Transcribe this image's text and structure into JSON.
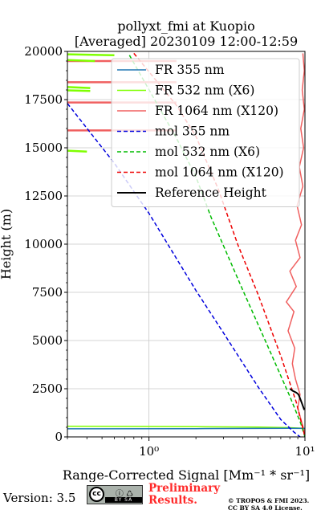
{
  "chart_data": {
    "type": "line",
    "title": "pollyxt_fmi at Kuopio",
    "subtitle": "[Averaged] 20230109 12:00-12:59",
    "xlabel": "Range-Corrected Signal [Mm⁻¹ * sr⁻¹]",
    "ylabel": "Height (m)",
    "xscale": "log",
    "xlim": [
      0.3,
      10
    ],
    "ylim": [
      0,
      20000
    ],
    "xticks": [
      1,
      10
    ],
    "xtick_labels": [
      "10⁰",
      "10¹"
    ],
    "yticks": [
      0,
      2500,
      5000,
      7500,
      10000,
      12500,
      15000,
      17500,
      20000
    ],
    "ytick_labels": [
      "0",
      "2500",
      "5000",
      "7500",
      "10000",
      "12500",
      "15000",
      "17500",
      "20000"
    ],
    "grid": true,
    "legend_position": "top-right",
    "series": [
      {
        "name": "FR 355 nm",
        "color": "#1f77b4",
        "style": "solid",
        "points": [
          [
            0.3,
            420
          ],
          [
            2,
            430
          ],
          [
            5,
            440
          ],
          [
            8,
            450
          ],
          [
            10,
            440
          ]
        ]
      },
      {
        "name": "FR 532 nm (X6)",
        "color": "#7fff00",
        "style": "solid",
        "points": [
          [
            0.3,
            550
          ],
          [
            2,
            530
          ],
          [
            5,
            510
          ],
          [
            8,
            480
          ],
          [
            10,
            440
          ]
        ],
        "extra_segments": [
          [
            [
              0.3,
              19850
            ],
            [
              0.6,
              19800
            ]
          ],
          [
            [
              0.3,
              19550
            ],
            [
              0.45,
              19500
            ]
          ],
          [
            [
              0.3,
              18150
            ],
            [
              0.42,
              18100
            ]
          ],
          [
            [
              0.3,
              17980
            ],
            [
              0.42,
              17950
            ]
          ],
          [
            [
              0.3,
              14850
            ],
            [
              0.4,
              14800
            ]
          ]
        ]
      },
      {
        "name": "FR 1064 nm (X120)",
        "color": "#f06060",
        "style": "solid",
        "points": [
          [
            10,
            200
          ],
          [
            9.5,
            800
          ],
          [
            9,
            1500
          ],
          [
            9.3,
            2200
          ],
          [
            8.7,
            3000
          ],
          [
            8.3,
            3800
          ],
          [
            8.6,
            4600
          ],
          [
            7.8,
            5500
          ],
          [
            8.5,
            6500
          ],
          [
            7.6,
            7000
          ],
          [
            8.8,
            7800
          ],
          [
            8,
            8600
          ],
          [
            9.3,
            9300
          ],
          [
            8.7,
            10200
          ],
          [
            9.5,
            11000
          ],
          [
            8.9,
            12000
          ],
          [
            9.7,
            13000
          ],
          [
            9.2,
            14000
          ],
          [
            9.8,
            15000
          ],
          [
            9.4,
            16000
          ],
          [
            9.9,
            17000
          ],
          [
            9.6,
            18000
          ],
          [
            9.9,
            19000
          ],
          [
            9.7,
            19900
          ]
        ],
        "extra_segments": [
          [
            [
              0.3,
              15900
            ],
            [
              1.5,
              15900
            ]
          ],
          [
            [
              0.3,
              17350
            ],
            [
              1.5,
              17350
            ]
          ],
          [
            [
              0.3,
              18400
            ],
            [
              1.5,
              18400
            ]
          ],
          [
            [
              0.3,
              19500
            ],
            [
              1.5,
              19500
            ]
          ]
        ]
      },
      {
        "name": "mol 355 nm",
        "color": "#0000dd",
        "style": "dashed",
        "points": [
          [
            0.3,
            17300
          ],
          [
            0.6,
            14200
          ],
          [
            1,
            11600
          ],
          [
            2,
            7600
          ],
          [
            3,
            5400
          ],
          [
            5,
            2600
          ],
          [
            7,
            900
          ],
          [
            8.5,
            250
          ],
          [
            9.3,
            0
          ]
        ]
      },
      {
        "name": "mol 532 nm (X6)",
        "color": "#00bb00",
        "style": "dashed",
        "points": [
          [
            0.75,
            19800
          ],
          [
            1.5,
            15500
          ],
          [
            2,
            13500
          ],
          [
            2.5,
            11400
          ],
          [
            4,
            7600
          ],
          [
            6,
            4400
          ],
          [
            8,
            2100
          ],
          [
            9.4,
            700
          ],
          [
            10,
            0
          ]
        ]
      },
      {
        "name": "mol 1064 nm (X120)",
        "color": "#ee0000",
        "style": "dashed",
        "points": [
          [
            0.8,
            19900
          ],
          [
            1.5,
            17200
          ],
          [
            2,
            15600
          ],
          [
            2.8,
            12800
          ],
          [
            3.7,
            10000
          ],
          [
            5,
            7400
          ],
          [
            7,
            4200
          ],
          [
            8.8,
            1800
          ],
          [
            10,
            0
          ]
        ]
      },
      {
        "name": "Reference Height",
        "color": "#000000",
        "style": "solid",
        "points": [
          [
            8,
            2500
          ],
          [
            8.3,
            2400
          ],
          [
            8.8,
            2300
          ],
          [
            9.1,
            2200
          ],
          [
            9.3,
            2000
          ],
          [
            9.6,
            1700
          ],
          [
            9.9,
            1400
          ]
        ]
      }
    ]
  },
  "footer": {
    "version_label": "Version: 3.5",
    "cc_mark": "cc",
    "license_short": "BY   SA",
    "preliminary_line1": "Preliminary",
    "preliminary_line2": "Results.",
    "copyright_line1": "© TROPOS & FMI 2023.",
    "copyright_line2": "CC BY SA 4.0 License."
  }
}
